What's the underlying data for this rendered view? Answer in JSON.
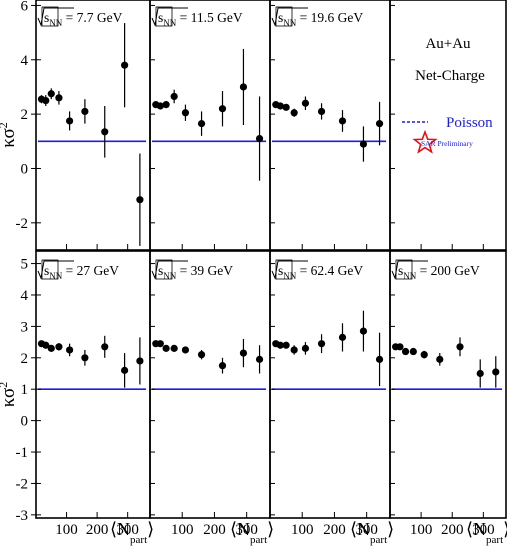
{
  "chart_data": {
    "type": "scatter",
    "ylabel": "κσ",
    "ylabel_exp": "2",
    "xlabel": "⟨N",
    "xlabel_sub": "part",
    "xlabel_close": "⟩",
    "x_ticks": [
      100,
      200,
      300
    ],
    "xlim": [
      0,
      360
    ],
    "rows": [
      {
        "ylim": [
          -3,
          6.2
        ],
        "y_ticks": [
          -2,
          0,
          2,
          4,
          6
        ]
      },
      {
        "ylim": [
          -3.1,
          5.4
        ],
        "y_ticks": [
          -3,
          -2,
          -1,
          0,
          1,
          2,
          3,
          4,
          5
        ]
      }
    ],
    "baseline": 1,
    "baseline_color": "#1f1fd6",
    "marker_color": "#000000",
    "panels": [
      {
        "label": "√s",
        "sub": "NN",
        "energy": " = 7.7 GeV",
        "row": 0,
        "col": 0,
        "points": [
          {
            "x": 18,
            "y": 2.55,
            "e": 0.15
          },
          {
            "x": 32,
            "y": 2.5,
            "e": 0.2
          },
          {
            "x": 50,
            "y": 2.75,
            "e": 0.2
          },
          {
            "x": 75,
            "y": 2.6,
            "e": 0.25
          },
          {
            "x": 110,
            "y": 1.75,
            "e": 0.35
          },
          {
            "x": 160,
            "y": 2.1,
            "e": 0.45
          },
          {
            "x": 225,
            "y": 1.35,
            "e": 0.95
          },
          {
            "x": 290,
            "y": 3.8,
            "e": 1.55
          },
          {
            "x": 340,
            "y": -1.15,
            "e": 1.7
          }
        ]
      },
      {
        "label": "√s",
        "sub": "NN",
        "energy": " = 11.5 GeV",
        "row": 0,
        "col": 1,
        "points": [
          {
            "x": 18,
            "y": 2.35,
            "e": 0.12
          },
          {
            "x": 32,
            "y": 2.3,
            "e": 0.12
          },
          {
            "x": 50,
            "y": 2.35,
            "e": 0.12
          },
          {
            "x": 75,
            "y": 2.65,
            "e": 0.25
          },
          {
            "x": 110,
            "y": 2.05,
            "e": 0.3
          },
          {
            "x": 160,
            "y": 1.65,
            "e": 0.45
          },
          {
            "x": 225,
            "y": 2.2,
            "e": 0.65
          },
          {
            "x": 290,
            "y": 3.0,
            "e": 1.4
          },
          {
            "x": 340,
            "y": 1.1,
            "e": 1.55
          }
        ]
      },
      {
        "label": "√s",
        "sub": "NN",
        "energy": " = 19.6 GeV",
        "row": 0,
        "col": 2,
        "points": [
          {
            "x": 18,
            "y": 2.35,
            "e": 0.08
          },
          {
            "x": 32,
            "y": 2.3,
            "e": 0.08
          },
          {
            "x": 50,
            "y": 2.25,
            "e": 0.1
          },
          {
            "x": 75,
            "y": 2.05,
            "e": 0.15
          },
          {
            "x": 110,
            "y": 2.4,
            "e": 0.25
          },
          {
            "x": 160,
            "y": 2.1,
            "e": 0.3
          },
          {
            "x": 225,
            "y": 1.75,
            "e": 0.4
          },
          {
            "x": 290,
            "y": 0.9,
            "e": 0.65
          },
          {
            "x": 340,
            "y": 1.65,
            "e": 0.8
          }
        ]
      },
      {
        "label": "√s",
        "sub": "NN",
        "energy": " = 27 GeV",
        "row": 1,
        "col": 0,
        "points": [
          {
            "x": 18,
            "y": 2.45,
            "e": 0.08
          },
          {
            "x": 32,
            "y": 2.4,
            "e": 0.08
          },
          {
            "x": 50,
            "y": 2.3,
            "e": 0.1
          },
          {
            "x": 75,
            "y": 2.35,
            "e": 0.12
          },
          {
            "x": 110,
            "y": 2.25,
            "e": 0.2
          },
          {
            "x": 160,
            "y": 2.0,
            "e": 0.25
          },
          {
            "x": 225,
            "y": 2.35,
            "e": 0.35
          },
          {
            "x": 290,
            "y": 1.6,
            "e": 0.55
          },
          {
            "x": 340,
            "y": 1.9,
            "e": 0.75
          }
        ]
      },
      {
        "label": "√s",
        "sub": "NN",
        "energy": " = 39 GeV",
        "row": 1,
        "col": 1,
        "points": [
          {
            "x": 18,
            "y": 2.45,
            "e": 0.06
          },
          {
            "x": 32,
            "y": 2.45,
            "e": 0.06
          },
          {
            "x": 50,
            "y": 2.3,
            "e": 0.08
          },
          {
            "x": 75,
            "y": 2.3,
            "e": 0.1
          },
          {
            "x": 110,
            "y": 2.25,
            "e": 0.1
          },
          {
            "x": 160,
            "y": 2.1,
            "e": 0.15
          },
          {
            "x": 225,
            "y": 1.75,
            "e": 0.25
          },
          {
            "x": 290,
            "y": 2.15,
            "e": 0.45
          },
          {
            "x": 340,
            "y": 1.95,
            "e": 0.45
          }
        ]
      },
      {
        "label": "√s",
        "sub": "NN",
        "energy": " = 62.4 GeV",
        "row": 1,
        "col": 2,
        "points": [
          {
            "x": 18,
            "y": 2.45,
            "e": 0.08
          },
          {
            "x": 32,
            "y": 2.4,
            "e": 0.08
          },
          {
            "x": 50,
            "y": 2.4,
            "e": 0.1
          },
          {
            "x": 75,
            "y": 2.25,
            "e": 0.15
          },
          {
            "x": 110,
            "y": 2.3,
            "e": 0.2
          },
          {
            "x": 160,
            "y": 2.45,
            "e": 0.3
          },
          {
            "x": 225,
            "y": 2.65,
            "e": 0.45
          },
          {
            "x": 290,
            "y": 2.85,
            "e": 0.65
          },
          {
            "x": 340,
            "y": 1.95,
            "e": 0.85
          }
        ]
      },
      {
        "label": "√s",
        "sub": "NN",
        "energy": " = 200 GeV",
        "row": 1,
        "col": 3,
        "points": [
          {
            "x": 18,
            "y": 2.35,
            "e": 0.08
          },
          {
            "x": 32,
            "y": 2.35,
            "e": 0.08
          },
          {
            "x": 50,
            "y": 2.2,
            "e": 0.1
          },
          {
            "x": 75,
            "y": 2.2,
            "e": 0.1
          },
          {
            "x": 110,
            "y": 2.1,
            "e": 0.12
          },
          {
            "x": 160,
            "y": 1.95,
            "e": 0.2
          },
          {
            "x": 225,
            "y": 2.35,
            "e": 0.3
          },
          {
            "x": 290,
            "y": 1.5,
            "e": 0.45
          },
          {
            "x": 340,
            "y": 1.55,
            "e": 0.5
          }
        ]
      }
    ],
    "legend": {
      "system": "Au+Au",
      "observable": "Net-Charge",
      "poisson_label": "Poisson",
      "poisson_color": "#1f1fd6",
      "preliminary_prefix": "S",
      "preliminary_text": "AR Preliminary",
      "preliminary_color": "#1f1fd6",
      "star_color": "#e0101a",
      "star_icon": "star-outline-icon"
    }
  }
}
